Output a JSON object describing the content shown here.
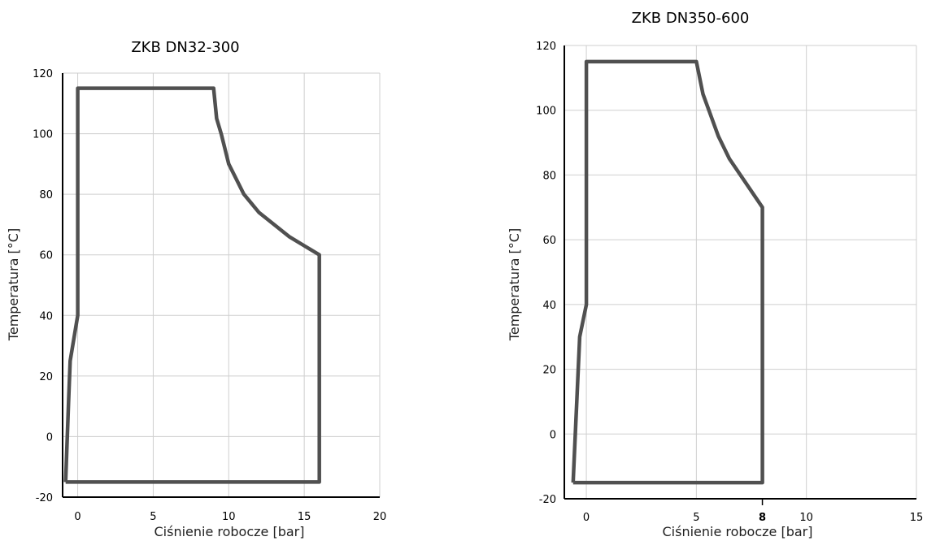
{
  "chart_data": [
    {
      "type": "line",
      "title": "ZKB DN32-300",
      "xlabel": "Ciśnienie robocze [bar]",
      "ylabel": "Temperatura [°C]",
      "xlim": [
        -1,
        20
      ],
      "ylim": [
        -20,
        120
      ],
      "xticks": [
        0,
        5,
        10,
        15,
        20
      ],
      "yticks": [
        -20,
        0,
        20,
        40,
        60,
        80,
        100,
        120
      ],
      "grid": true,
      "series": [
        {
          "color": "#505050",
          "x": [
            -0.8,
            -0.6,
            -0.5,
            0,
            0,
            9,
            9.2,
            9.5,
            10,
            11,
            12,
            13,
            14,
            15,
            16,
            16,
            -0.8
          ],
          "y": [
            -15,
            12,
            25,
            40,
            115,
            115,
            105,
            100,
            90,
            80,
            74,
            70,
            66,
            63,
            60,
            -15,
            -15
          ]
        }
      ]
    },
    {
      "type": "line",
      "title": "ZKB DN350-600",
      "xlabel": "Ciśnienie robocze [bar]",
      "ylabel": "Temperatura [°C]",
      "xlim": [
        -1,
        15
      ],
      "ylim": [
        -20,
        120
      ],
      "xticks": [
        0,
        5,
        8,
        10,
        15
      ],
      "yticks": [
        -20,
        0,
        20,
        40,
        60,
        80,
        100,
        120
      ],
      "highlight_tick": 8,
      "grid": true,
      "series": [
        {
          "color": "#505050",
          "x": [
            -0.6,
            -0.4,
            -0.3,
            0,
            0,
            5,
            5.3,
            6,
            6.5,
            7,
            8,
            8,
            -0.6
          ],
          "y": [
            -15,
            15,
            30,
            40,
            115,
            115,
            105,
            92,
            85,
            80,
            70,
            -15,
            -15
          ]
        }
      ]
    }
  ]
}
